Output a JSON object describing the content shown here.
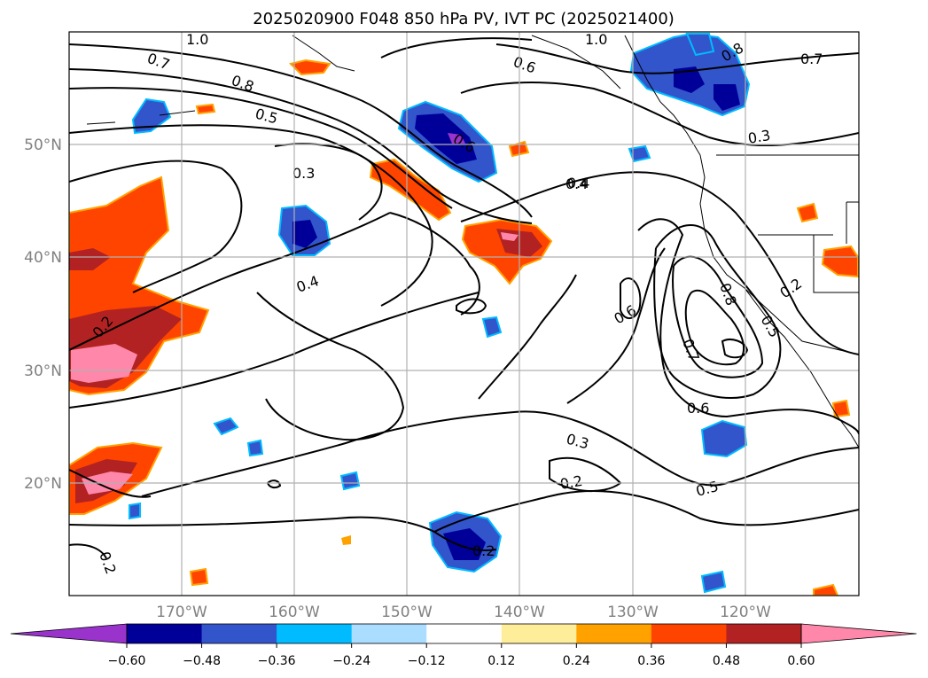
{
  "title": "2025020900 F048 850 hPa PV, IVT PC (2025021400)",
  "map": {
    "lon_labels": [
      "170°W",
      "160°W",
      "150°W",
      "140°W",
      "130°W",
      "120°W"
    ],
    "lat_labels": [
      "50°N",
      "40°N",
      "30°N",
      "20°N"
    ],
    "gridlines": true
  },
  "contour_labels": [
    "1.0",
    "0.7",
    "0.8",
    "0.5",
    "0.3",
    "0.6",
    "0.4",
    "0.6",
    "1.0",
    "0.8",
    "0.7",
    "0.3",
    "0.4",
    "0.4",
    "0.2",
    "0.6",
    "0.7",
    "0.8",
    "0.5",
    "0.2",
    "0.6",
    "0.3",
    "0.2",
    "0.5",
    "0.2",
    "0.2"
  ],
  "colorbar": {
    "ticks": [
      "−0.60",
      "−0.48",
      "−0.36",
      "−0.24",
      "−0.12",
      "0.12",
      "0.24",
      "0.36",
      "0.48",
      "0.60"
    ],
    "colors": [
      "#9933cc",
      "#000099",
      "#3355cc",
      "#00bbff",
      "#aaddff",
      "#ffffff",
      "#ffee99",
      "#ffa200",
      "#ff4400",
      "#b22222",
      "#ff88aa",
      "#ff88aa"
    ],
    "extend": "both"
  }
}
